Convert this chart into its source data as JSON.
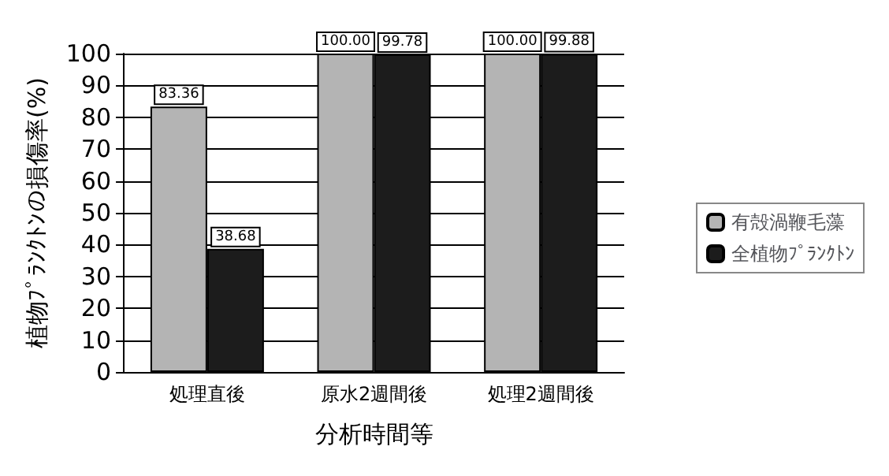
{
  "chart_data": {
    "type": "bar",
    "xlabel": "分析時間等",
    "ylabel": "植物ﾌﾟﾗﾝｸﾄﾝの損傷率(%)",
    "categories": [
      "処理直後",
      "原水2週間後",
      "処理2週間後"
    ],
    "series": [
      {
        "name": "有殻渦鞭毛藻",
        "color": "#b4b4b4",
        "values": [
          83.36,
          100,
          100
        ],
        "value_labels": [
          "83.36",
          "100.00",
          "100.00"
        ]
      },
      {
        "name": "全植物ﾌﾟﾗﾝｸﾄﾝ",
        "color": "#1c1c1c",
        "values": [
          38.68,
          99.78,
          99.88
        ],
        "value_labels": [
          "38.68",
          "99.78",
          "99.88"
        ]
      }
    ],
    "ylim": [
      0,
      100
    ],
    "yticks": [
      0,
      10,
      20,
      30,
      40,
      50,
      60,
      70,
      80,
      90,
      100
    ],
    "grid": "y",
    "legend": "right"
  }
}
